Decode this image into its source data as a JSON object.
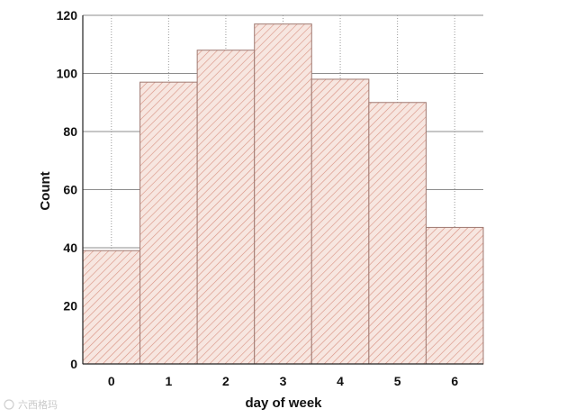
{
  "chart_data": {
    "type": "bar",
    "categories": [
      "0",
      "1",
      "2",
      "3",
      "4",
      "5",
      "6"
    ],
    "values": [
      39,
      97,
      108,
      117,
      98,
      90,
      47
    ],
    "title": "",
    "xlabel": "day of week",
    "ylabel": "Count",
    "ylim": [
      0,
      120
    ],
    "yticks": [
      "0",
      "20",
      "40",
      "60",
      "80",
      "100",
      "120"
    ],
    "grid": {
      "x": "dotted",
      "y": "solid"
    },
    "bar_fill": "#f7e6e0",
    "bar_hatch_color": "#d89080",
    "bar_edge": "#a07a72"
  },
  "watermark": {
    "text": "六西格玛"
  }
}
